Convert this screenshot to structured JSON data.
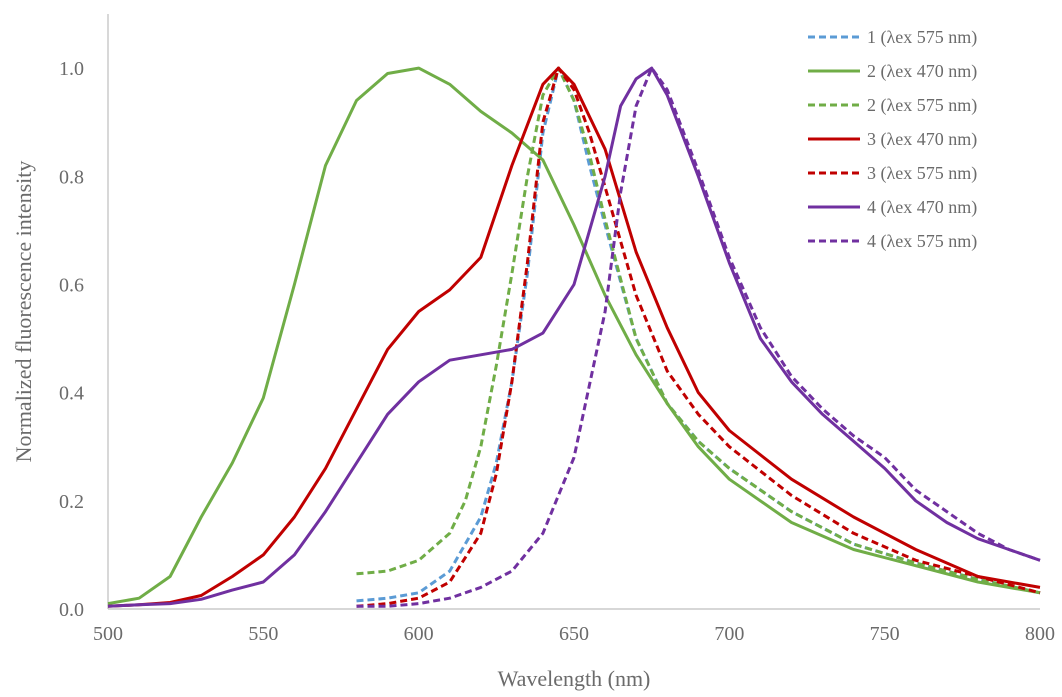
{
  "chart_data": {
    "type": "line",
    "title": "",
    "xlabel": "Wavelength (nm)",
    "ylabel": "Normalized  fluorescence intensity",
    "xlim": [
      500,
      800
    ],
    "ylim": [
      0,
      1.1
    ],
    "xticks": [
      500,
      550,
      600,
      650,
      700,
      750,
      800
    ],
    "yticks": [
      0.0,
      0.2,
      0.4,
      0.6,
      0.8,
      1.0
    ],
    "xtick_labels": [
      "500",
      "550",
      "600",
      "650",
      "700",
      "750",
      "800"
    ],
    "ytick_labels": [
      "0.0",
      "0.2",
      "0.4",
      "0.6",
      "0.8",
      "1.0"
    ],
    "grid": false,
    "legend_position": "top-right",
    "series": [
      {
        "name": "1 (λex 575 nm)",
        "color": "#5b9bd5",
        "dash": "dashed",
        "points": [
          [
            580,
            0.015
          ],
          [
            590,
            0.02
          ],
          [
            600,
            0.03
          ],
          [
            610,
            0.07
          ],
          [
            620,
            0.17
          ],
          [
            625,
            0.27
          ],
          [
            630,
            0.42
          ],
          [
            635,
            0.62
          ],
          [
            640,
            0.88
          ],
          [
            645,
            1.0
          ],
          [
            650,
            0.94
          ],
          [
            655,
            0.82
          ],
          [
            660,
            0.71
          ],
          [
            670,
            0.5
          ],
          [
            680,
            0.38
          ],
          [
            690,
            0.31
          ],
          [
            700,
            0.26
          ],
          [
            720,
            0.18
          ],
          [
            740,
            0.12
          ],
          [
            760,
            0.085
          ],
          [
            780,
            0.055
          ],
          [
            800,
            0.03
          ]
        ]
      },
      {
        "name": "2 (λex 470 nm)",
        "color": "#70ad47",
        "dash": "solid",
        "points": [
          [
            500,
            0.01
          ],
          [
            510,
            0.02
          ],
          [
            520,
            0.06
          ],
          [
            530,
            0.17
          ],
          [
            540,
            0.27
          ],
          [
            550,
            0.39
          ],
          [
            560,
            0.6
          ],
          [
            570,
            0.82
          ],
          [
            580,
            0.94
          ],
          [
            590,
            0.99
          ],
          [
            600,
            1.0
          ],
          [
            610,
            0.97
          ],
          [
            620,
            0.92
          ],
          [
            630,
            0.88
          ],
          [
            640,
            0.83
          ],
          [
            650,
            0.71
          ],
          [
            660,
            0.58
          ],
          [
            670,
            0.47
          ],
          [
            680,
            0.38
          ],
          [
            690,
            0.3
          ],
          [
            700,
            0.24
          ],
          [
            720,
            0.16
          ],
          [
            740,
            0.11
          ],
          [
            760,
            0.08
          ],
          [
            780,
            0.05
          ],
          [
            800,
            0.03
          ]
        ]
      },
      {
        "name": "2 (λex 575 nm)",
        "color": "#70ad47",
        "dash": "dashed",
        "points": [
          [
            580,
            0.065
          ],
          [
            590,
            0.07
          ],
          [
            600,
            0.09
          ],
          [
            610,
            0.14
          ],
          [
            615,
            0.2
          ],
          [
            620,
            0.3
          ],
          [
            625,
            0.45
          ],
          [
            630,
            0.62
          ],
          [
            635,
            0.8
          ],
          [
            640,
            0.95
          ],
          [
            645,
            1.0
          ],
          [
            650,
            0.94
          ],
          [
            655,
            0.84
          ],
          [
            660,
            0.72
          ],
          [
            670,
            0.5
          ],
          [
            680,
            0.38
          ],
          [
            690,
            0.31
          ],
          [
            700,
            0.26
          ],
          [
            720,
            0.18
          ],
          [
            740,
            0.12
          ],
          [
            760,
            0.085
          ],
          [
            780,
            0.055
          ],
          [
            800,
            0.03
          ]
        ]
      },
      {
        "name": "3 (λex 470 nm)",
        "color": "#c00000",
        "dash": "solid",
        "points": [
          [
            500,
            0.005
          ],
          [
            510,
            0.008
          ],
          [
            520,
            0.012
          ],
          [
            530,
            0.025
          ],
          [
            540,
            0.06
          ],
          [
            550,
            0.1
          ],
          [
            560,
            0.17
          ],
          [
            570,
            0.26
          ],
          [
            580,
            0.37
          ],
          [
            590,
            0.48
          ],
          [
            600,
            0.55
          ],
          [
            610,
            0.59
          ],
          [
            620,
            0.65
          ],
          [
            630,
            0.82
          ],
          [
            640,
            0.97
          ],
          [
            645,
            1.0
          ],
          [
            650,
            0.97
          ],
          [
            660,
            0.85
          ],
          [
            670,
            0.66
          ],
          [
            680,
            0.52
          ],
          [
            690,
            0.4
          ],
          [
            700,
            0.33
          ],
          [
            720,
            0.24
          ],
          [
            740,
            0.17
          ],
          [
            760,
            0.11
          ],
          [
            780,
            0.06
          ],
          [
            800,
            0.04
          ]
        ]
      },
      {
        "name": "3 (λex 575 nm)",
        "color": "#c00000",
        "dash": "dashed",
        "points": [
          [
            580,
            0.005
          ],
          [
            590,
            0.01
          ],
          [
            600,
            0.02
          ],
          [
            610,
            0.05
          ],
          [
            620,
            0.14
          ],
          [
            625,
            0.25
          ],
          [
            630,
            0.42
          ],
          [
            635,
            0.64
          ],
          [
            640,
            0.9
          ],
          [
            645,
            1.0
          ],
          [
            650,
            0.96
          ],
          [
            655,
            0.88
          ],
          [
            660,
            0.78
          ],
          [
            670,
            0.58
          ],
          [
            680,
            0.44
          ],
          [
            690,
            0.36
          ],
          [
            700,
            0.3
          ],
          [
            720,
            0.21
          ],
          [
            740,
            0.14
          ],
          [
            760,
            0.09
          ],
          [
            780,
            0.06
          ],
          [
            800,
            0.03
          ]
        ]
      },
      {
        "name": "4 (λex 470 nm)",
        "color": "#7030a0",
        "dash": "solid",
        "points": [
          [
            500,
            0.005
          ],
          [
            510,
            0.008
          ],
          [
            520,
            0.01
          ],
          [
            530,
            0.018
          ],
          [
            540,
            0.035
          ],
          [
            550,
            0.05
          ],
          [
            560,
            0.1
          ],
          [
            570,
            0.18
          ],
          [
            580,
            0.27
          ],
          [
            590,
            0.36
          ],
          [
            600,
            0.42
          ],
          [
            610,
            0.46
          ],
          [
            620,
            0.47
          ],
          [
            630,
            0.48
          ],
          [
            640,
            0.51
          ],
          [
            650,
            0.6
          ],
          [
            660,
            0.8
          ],
          [
            665,
            0.93
          ],
          [
            670,
            0.98
          ],
          [
            675,
            1.0
          ],
          [
            680,
            0.95
          ],
          [
            690,
            0.8
          ],
          [
            700,
            0.64
          ],
          [
            710,
            0.5
          ],
          [
            720,
            0.42
          ],
          [
            730,
            0.36
          ],
          [
            740,
            0.31
          ],
          [
            750,
            0.26
          ],
          [
            760,
            0.2
          ],
          [
            770,
            0.16
          ],
          [
            780,
            0.13
          ],
          [
            790,
            0.11
          ],
          [
            800,
            0.09
          ]
        ]
      },
      {
        "name": "4 (λex 575 nm)",
        "color": "#7030a0",
        "dash": "dashed",
        "points": [
          [
            580,
            0.005
          ],
          [
            590,
            0.005
          ],
          [
            600,
            0.01
          ],
          [
            610,
            0.02
          ],
          [
            620,
            0.04
          ],
          [
            630,
            0.07
          ],
          [
            640,
            0.14
          ],
          [
            650,
            0.28
          ],
          [
            660,
            0.55
          ],
          [
            665,
            0.77
          ],
          [
            670,
            0.93
          ],
          [
            675,
            1.0
          ],
          [
            680,
            0.96
          ],
          [
            690,
            0.81
          ],
          [
            700,
            0.65
          ],
          [
            710,
            0.52
          ],
          [
            720,
            0.43
          ],
          [
            730,
            0.37
          ],
          [
            740,
            0.32
          ],
          [
            750,
            0.28
          ],
          [
            760,
            0.22
          ],
          [
            770,
            0.18
          ],
          [
            780,
            0.14
          ],
          [
            790,
            0.11
          ],
          [
            800,
            0.09
          ]
        ]
      }
    ]
  }
}
